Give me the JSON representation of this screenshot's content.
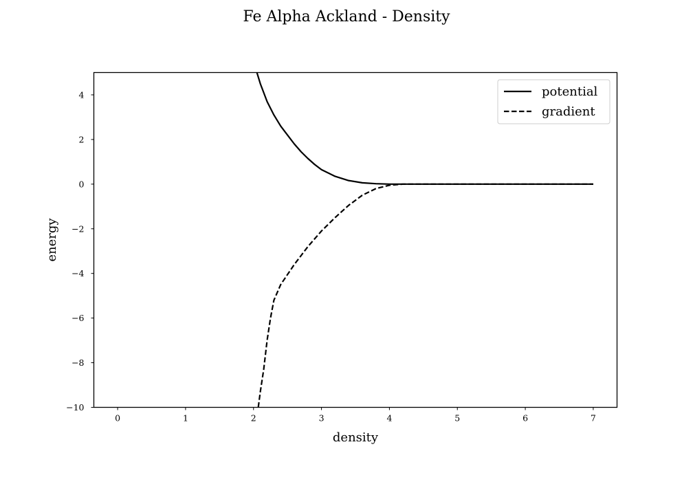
{
  "chart_data": {
    "type": "line",
    "title": "Fe Alpha Ackland - Density",
    "xlabel": "density",
    "ylabel": "energy",
    "xlim": [
      -0.35,
      7.35
    ],
    "ylim": [
      -10,
      5
    ],
    "xticks": [
      0,
      1,
      2,
      3,
      4,
      5,
      6,
      7
    ],
    "xtick_labels": [
      "0",
      "1",
      "2",
      "3",
      "4",
      "5",
      "6",
      "7"
    ],
    "yticks": [
      -10,
      -8,
      -6,
      -4,
      -2,
      0,
      2,
      4
    ],
    "ytick_labels": [
      "−10",
      "−8",
      "−6",
      "−4",
      "−2",
      "0",
      "2",
      "4"
    ],
    "grid": false,
    "legend_position": "top-right",
    "series": [
      {
        "name": "potential",
        "style": "solid",
        "color": "#000000",
        "x": [
          2.05,
          2.1,
          2.2,
          2.3,
          2.4,
          2.5,
          2.6,
          2.7,
          2.8,
          2.9,
          3.0,
          3.2,
          3.4,
          3.6,
          3.8,
          4.0,
          4.2,
          5.0,
          6.0,
          7.0
        ],
        "y": [
          5.0,
          4.5,
          3.7,
          3.1,
          2.6,
          2.2,
          1.8,
          1.45,
          1.15,
          0.88,
          0.65,
          0.35,
          0.16,
          0.06,
          0.02,
          0.0,
          0.0,
          0.0,
          0.0,
          0.0
        ]
      },
      {
        "name": "gradient",
        "style": "dashed",
        "color": "#000000",
        "x": [
          2.07,
          2.1,
          2.15,
          2.2,
          2.25,
          2.3,
          2.4,
          2.5,
          2.6,
          2.7,
          2.8,
          2.9,
          3.0,
          3.2,
          3.4,
          3.6,
          3.8,
          4.0,
          4.2,
          5.0,
          6.0,
          7.0
        ],
        "y": [
          -10.0,
          -9.3,
          -8.3,
          -7.0,
          -6.0,
          -5.2,
          -4.5,
          -4.05,
          -3.6,
          -3.2,
          -2.8,
          -2.45,
          -2.1,
          -1.5,
          -0.95,
          -0.5,
          -0.2,
          -0.05,
          0.0,
          0.0,
          0.0,
          0.0
        ]
      }
    ]
  }
}
